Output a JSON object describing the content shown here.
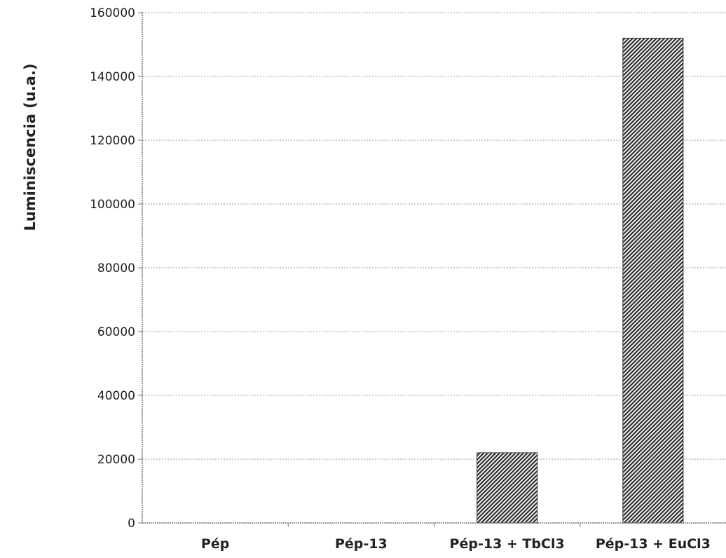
{
  "chart_data": {
    "type": "bar",
    "title": "",
    "xlabel": "",
    "ylabel": "Luminiscencia (u.a.)",
    "categories": [
      "Pép",
      "Pép-13",
      "Pép-13 + TbCl3",
      "Pép-13 + EuCl3"
    ],
    "values": [
      0,
      0,
      22000,
      152000
    ],
    "ylim": [
      0,
      160000
    ],
    "yticks": [
      0,
      20000,
      40000,
      60000,
      80000,
      100000,
      120000,
      140000,
      160000
    ],
    "grid": true,
    "legend": "none",
    "bar_color": "#3a3a3a"
  }
}
